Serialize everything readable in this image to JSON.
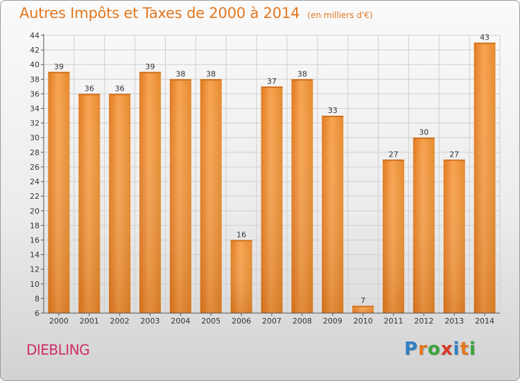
{
  "header": {
    "title": "Autres Impôts et Taxes de 2000 à 2014",
    "unit": "(en milliers d'€)"
  },
  "footer": {
    "place": "DIEBLING",
    "logo": [
      "P",
      "r",
      "o",
      "x",
      "i",
      "t",
      "i"
    ],
    "logo_colors": [
      "#2f7fc4",
      "#e2771f",
      "#3aa33a",
      "#d83a2a",
      "#2f7fc4",
      "#e2771f",
      "#3aa33a"
    ]
  },
  "colors": {
    "bar": "#f08c2c",
    "bar_light": "#f7a452",
    "bar_dark": "#d2701a",
    "grid": "#cfcfcf"
  },
  "chart_data": {
    "type": "bar",
    "title": "Autres Impôts et Taxes de 2000 à 2014",
    "subtitle": "(en milliers d'€)",
    "xlabel": "",
    "ylabel": "",
    "categories": [
      "2000",
      "2001",
      "2002",
      "2003",
      "2004",
      "2005",
      "2006",
      "2007",
      "2008",
      "2009",
      "2010",
      "2011",
      "2012",
      "2013",
      "2014"
    ],
    "values": [
      39,
      36,
      36,
      39,
      38,
      38,
      16,
      37,
      38,
      33,
      7,
      27,
      30,
      27,
      43
    ],
    "ylim": [
      6,
      44
    ],
    "yticks": [
      6,
      8,
      10,
      12,
      14,
      16,
      18,
      20,
      22,
      24,
      26,
      28,
      30,
      32,
      34,
      36,
      38,
      40,
      42,
      44
    ],
    "grid": true
  }
}
